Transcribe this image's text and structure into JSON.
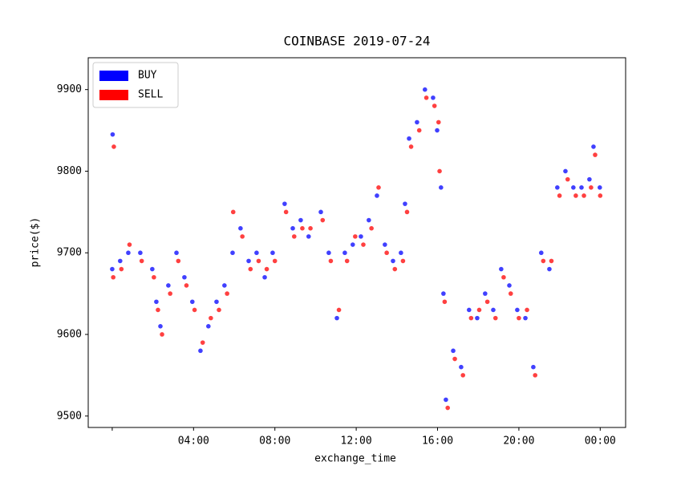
{
  "chart_data": {
    "type": "scatter",
    "title": "COINBASE 2019-07-24",
    "x_label": "exchange_time",
    "y_label": "price($)",
    "xlim": [
      -1.18,
      25.25
    ],
    "ylim": [
      9486,
      9939
    ],
    "xticks": [
      {
        "value": 0,
        "label": null
      },
      {
        "value": 4,
        "label": "04:00"
      },
      {
        "value": 8,
        "label": "08:00"
      },
      {
        "value": 12,
        "label": "12:00"
      },
      {
        "value": 16,
        "label": "16:00"
      },
      {
        "value": 20,
        "label": "20:00"
      },
      {
        "value": 24,
        "label": "00:00"
      }
    ],
    "yticks": [
      9500,
      9600,
      9700,
      9800,
      9900
    ],
    "legend": "upper left",
    "series": [
      {
        "name": "BUY",
        "color": "#0000ff",
        "x": [
          0,
          0.02,
          0.39,
          0.79,
          1.38,
          1.97,
          2.17,
          2.37,
          2.76,
          3.16,
          3.55,
          3.94,
          4.34,
          4.73,
          5.13,
          5.52,
          5.92,
          6.31,
          6.71,
          7.1,
          7.5,
          7.89,
          8.48,
          8.88,
          9.27,
          9.66,
          10.26,
          10.65,
          11.05,
          11.44,
          11.83,
          12.23,
          12.62,
          13.02,
          13.41,
          13.81,
          14.2,
          14.4,
          14.6,
          14.99,
          15.38,
          15.78,
          15.98,
          16.17,
          16.29,
          16.41,
          16.77,
          17.16,
          17.55,
          17.95,
          18.34,
          18.74,
          19.13,
          19.53,
          19.92,
          20.32,
          20.71,
          21.1,
          21.5,
          21.89,
          22.29,
          22.68,
          23.08,
          23.47,
          23.67,
          23.98
        ],
        "values": [
          9680,
          9845,
          9690,
          9700,
          9700,
          9680,
          9640,
          9610,
          9660,
          9700,
          9670,
          9640,
          9580,
          9610,
          9640,
          9660,
          9700,
          9730,
          9690,
          9700,
          9670,
          9700,
          9760,
          9730,
          9740,
          9720,
          9750,
          9700,
          9620,
          9700,
          9710,
          9720,
          9740,
          9770,
          9710,
          9690,
          9700,
          9760,
          9840,
          9860,
          9900,
          9890,
          9850,
          9780,
          9650,
          9520,
          9580,
          9560,
          9630,
          9620,
          9650,
          9630,
          9680,
          9660,
          9630,
          9620,
          9560,
          9700,
          9680,
          9780,
          9800,
          9780,
          9780,
          9790,
          9830,
          9780
        ]
      },
      {
        "name": "SELL",
        "color": "#ff0000",
        "x": [
          0.05,
          0.08,
          0.45,
          0.85,
          1.45,
          2.05,
          2.25,
          2.45,
          2.85,
          3.25,
          3.65,
          4.05,
          4.45,
          4.85,
          5.25,
          5.65,
          5.95,
          6.4,
          6.8,
          7.2,
          7.6,
          8.0,
          8.55,
          8.95,
          9.35,
          9.75,
          10.35,
          10.75,
          11.15,
          11.55,
          11.95,
          12.35,
          12.75,
          13.1,
          13.5,
          13.9,
          14.3,
          14.5,
          14.7,
          15.1,
          15.45,
          15.85,
          16.05,
          16.1,
          16.35,
          16.5,
          16.85,
          17.25,
          17.65,
          18.05,
          18.45,
          18.85,
          19.25,
          19.6,
          20.0,
          20.4,
          20.8,
          21.2,
          21.6,
          22.0,
          22.4,
          22.8,
          23.2,
          23.55,
          23.75,
          24.0
        ],
        "values": [
          9670,
          9830,
          9680,
          9710,
          9690,
          9670,
          9630,
          9600,
          9650,
          9690,
          9660,
          9630,
          9590,
          9620,
          9630,
          9650,
          9750,
          9720,
          9680,
          9690,
          9680,
          9690,
          9750,
          9720,
          9730,
          9730,
          9740,
          9690,
          9630,
          9690,
          9720,
          9710,
          9730,
          9780,
          9700,
          9680,
          9690,
          9750,
          9830,
          9850,
          9890,
          9880,
          9860,
          9800,
          9640,
          9510,
          9570,
          9550,
          9620,
          9630,
          9640,
          9620,
          9670,
          9650,
          9620,
          9630,
          9550,
          9690,
          9690,
          9770,
          9790,
          9770,
          9770,
          9780,
          9820,
          9770
        ]
      }
    ]
  }
}
